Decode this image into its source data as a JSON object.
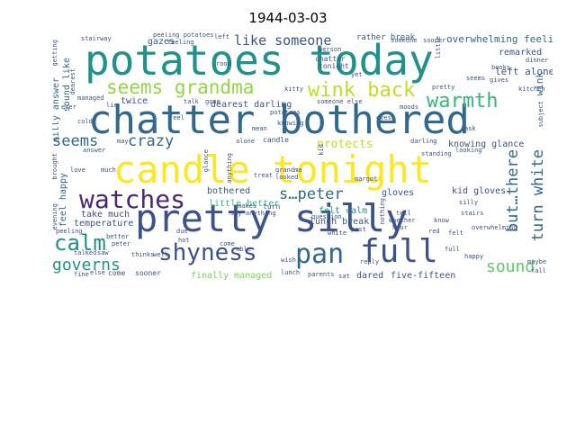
{
  "title": "1944-03-03",
  "words": [
    {
      "text": "candle tonight",
      "color": "#fde725"
    },
    {
      "text": "pretty silly",
      "color": "#3b528b"
    },
    {
      "text": "chatter bothered",
      "color": "#31688e"
    },
    {
      "text": "potatoes today",
      "color": "#21918c"
    },
    {
      "text": "pan",
      "color": "#31688e"
    },
    {
      "text": "full",
      "color": "#3b528b"
    },
    {
      "text": "shyness",
      "color": "#3b528b"
    },
    {
      "text": "watches",
      "color": "#482878"
    },
    {
      "text": "seems grandma",
      "color": "#90d743"
    },
    {
      "text": "wink back",
      "color": "#bddf26"
    },
    {
      "text": "warmth",
      "color": "#35b779"
    },
    {
      "text": "calm",
      "color": "#21918c"
    },
    {
      "text": "governs",
      "color": "#21918c"
    },
    {
      "text": "sound",
      "color": "#5ec962"
    },
    {
      "text": "seems",
      "color": "#31688e"
    },
    {
      "text": "crazy",
      "color": "#31688e"
    },
    {
      "text": "like someone",
      "color": "#3b528b"
    },
    {
      "text": "s…peter",
      "color": "#31688e"
    },
    {
      "text": "protects",
      "color": "#c2df23"
    },
    {
      "text": "but…there",
      "color": "#31688e"
    },
    {
      "text": "turn white",
      "color": "#31688e"
    },
    {
      "text": "overwhelming feeling",
      "color": "#31688e"
    },
    {
      "text": "remarked",
      "color": "#3b528b"
    },
    {
      "text": "left alone",
      "color": "#3b528b"
    },
    {
      "text": "wink",
      "color": "#31688e"
    },
    {
      "text": "knowing glance",
      "color": "#3b528b"
    },
    {
      "text": "kid gloves",
      "color": "#3b528b"
    },
    {
      "text": "gloves",
      "color": "#3b528b"
    },
    {
      "text": "felt calm",
      "color": "#21918c"
    },
    {
      "text": "bothered",
      "color": "#3b528b"
    },
    {
      "text": "little better",
      "color": "#35b779"
    },
    {
      "text": "take much",
      "color": "#3b528b"
    },
    {
      "text": "temperature",
      "color": "#3b528b"
    },
    {
      "text": "lunch break",
      "color": "#3b528b"
    },
    {
      "text": "dared",
      "color": "#3b528b"
    },
    {
      "text": "five-fifteen",
      "color": "#3b528b"
    },
    {
      "text": "finally managed",
      "color": "#7ad151"
    },
    {
      "text": "dearest darling",
      "color": "#3b528b"
    },
    {
      "text": "gazes",
      "color": "#3b528b"
    },
    {
      "text": "twice",
      "color": "#3b528b"
    },
    {
      "text": "feel happy",
      "color": "#31688e"
    },
    {
      "text": "sound like",
      "color": "#31688e"
    },
    {
      "text": "silly answer",
      "color": "#31688e"
    },
    {
      "text": "rather break",
      "color": "#3b528b"
    },
    {
      "text": "peeling potatoes",
      "color": "#3b528b"
    },
    {
      "text": "stairway",
      "color": "#3b528b"
    },
    {
      "text": "chatter",
      "color": "#3b528b"
    },
    {
      "text": "tonight",
      "color": "#3b528b"
    },
    {
      "text": "someone else",
      "color": "#3b528b"
    },
    {
      "text": "candle",
      "color": "#3b528b"
    },
    {
      "text": "potatoes",
      "color": "#3b528b"
    },
    {
      "text": "darling",
      "color": "#3b528b"
    },
    {
      "text": "standing",
      "color": "#3b528b"
    },
    {
      "text": "looking",
      "color": "#3b528b"
    },
    {
      "text": "silly",
      "color": "#3b528b"
    },
    {
      "text": "stairs",
      "color": "#3b528b"
    },
    {
      "text": "turn",
      "color": "#3b528b"
    },
    {
      "text": "question",
      "color": "#3b528b"
    },
    {
      "text": "overwhelming",
      "color": "#3b528b"
    },
    {
      "text": "kitchen",
      "color": "#3b528b"
    },
    {
      "text": "dinner",
      "color": "#3b528b"
    },
    {
      "text": "books",
      "color": "#3b528b"
    },
    {
      "text": "gives",
      "color": "#3b528b"
    },
    {
      "text": "seems",
      "color": "#3b528b"
    },
    {
      "text": "moods",
      "color": "#3b528b"
    },
    {
      "text": "grandma",
      "color": "#3b528b"
    },
    {
      "text": "treat",
      "color": "#3b528b"
    },
    {
      "text": "looked",
      "color": "#3b528b"
    },
    {
      "text": "makes",
      "color": "#3b528b"
    },
    {
      "text": "say anything",
      "color": "#3b528b"
    },
    {
      "text": "hour",
      "color": "#3b528b"
    },
    {
      "text": "red",
      "color": "#3b528b"
    },
    {
      "text": "felt",
      "color": "#3b528b"
    },
    {
      "text": "happy",
      "color": "#3b528b"
    },
    {
      "text": "maybe",
      "color": "#3b528b"
    },
    {
      "text": "reply",
      "color": "#3b528b"
    },
    {
      "text": "sat",
      "color": "#3b528b"
    },
    {
      "text": "parents",
      "color": "#3b528b"
    },
    {
      "text": "wish",
      "color": "#3b528b"
    },
    {
      "text": "lunch",
      "color": "#3b528b"
    },
    {
      "text": "come",
      "color": "#3b528b"
    },
    {
      "text": "able",
      "color": "#3b528b"
    },
    {
      "text": "due",
      "color": "#3b528b"
    },
    {
      "text": "hot",
      "color": "#3b528b"
    },
    {
      "text": "thinks",
      "color": "#3b528b"
    },
    {
      "text": "well",
      "color": "#3b528b"
    },
    {
      "text": "peeling",
      "color": "#3b528b"
    },
    {
      "text": "better",
      "color": "#3b528b"
    },
    {
      "text": "peter",
      "color": "#3b528b"
    },
    {
      "text": "talked",
      "color": "#3b528b"
    },
    {
      "text": "saw",
      "color": "#3b528b"
    },
    {
      "text": "evening",
      "color": "#3b528b"
    },
    {
      "text": "fine",
      "color": "#3b528b"
    },
    {
      "text": "else",
      "color": "#3b528b"
    },
    {
      "text": "come",
      "color": "#3b528b"
    },
    {
      "text": "sooner",
      "color": "#3b528b"
    },
    {
      "text": "brought",
      "color": "#3b528b"
    },
    {
      "text": "love",
      "color": "#3b528b"
    },
    {
      "text": "much",
      "color": "#3b528b"
    },
    {
      "text": "cold",
      "color": "#3b528b"
    },
    {
      "text": "feel",
      "color": "#3b528b"
    },
    {
      "text": "managed",
      "color": "#3b528b"
    },
    {
      "text": "ever",
      "color": "#3b528b"
    },
    {
      "text": "lie",
      "color": "#3b528b"
    },
    {
      "text": "getting",
      "color": "#3b528b"
    },
    {
      "text": "feeling",
      "color": "#3b528b"
    },
    {
      "text": "room",
      "color": "#3b528b"
    },
    {
      "text": "talk",
      "color": "#3b528b"
    },
    {
      "text": "gone",
      "color": "#3b528b"
    },
    {
      "text": "kitty",
      "color": "#3b528b"
    },
    {
      "text": "mean",
      "color": "#3b528b"
    },
    {
      "text": "knowing",
      "color": "#3b528b"
    },
    {
      "text": "glance",
      "color": "#3b528b"
    },
    {
      "text": "anything",
      "color": "#3b528b"
    },
    {
      "text": "alone",
      "color": "#3b528b"
    },
    {
      "text": "white",
      "color": "#3b528b"
    },
    {
      "text": "ask",
      "color": "#3b528b"
    },
    {
      "text": "tell",
      "color": "#3b528b"
    },
    {
      "text": "whether",
      "color": "#3b528b"
    },
    {
      "text": "know",
      "color": "#3b528b"
    },
    {
      "text": "past",
      "color": "#3b528b"
    },
    {
      "text": "margot",
      "color": "#3b528b"
    },
    {
      "text": "nothing",
      "color": "#3b528b"
    },
    {
      "text": "someone",
      "color": "#3b528b"
    },
    {
      "text": "sooner",
      "color": "#3b528b"
    },
    {
      "text": "little",
      "color": "#3b528b"
    },
    {
      "text": "person",
      "color": "#3b528b"
    },
    {
      "text": "eyes",
      "color": "#3b528b"
    },
    {
      "text": "may",
      "color": "#3b528b"
    },
    {
      "text": "kid",
      "color": "#3b528b"
    },
    {
      "text": "left",
      "color": "#3b528b"
    },
    {
      "text": "yet",
      "color": "#3b528b"
    },
    {
      "text": "pretty",
      "color": "#3b528b"
    },
    {
      "text": "subject",
      "color": "#3b528b"
    },
    {
      "text": "fall",
      "color": "#3b528b"
    },
    {
      "text": "dearest",
      "color": "#3b528b"
    },
    {
      "text": "full",
      "color": "#3b528b"
    },
    {
      "text": "answer",
      "color": "#3b528b"
    }
  ]
}
